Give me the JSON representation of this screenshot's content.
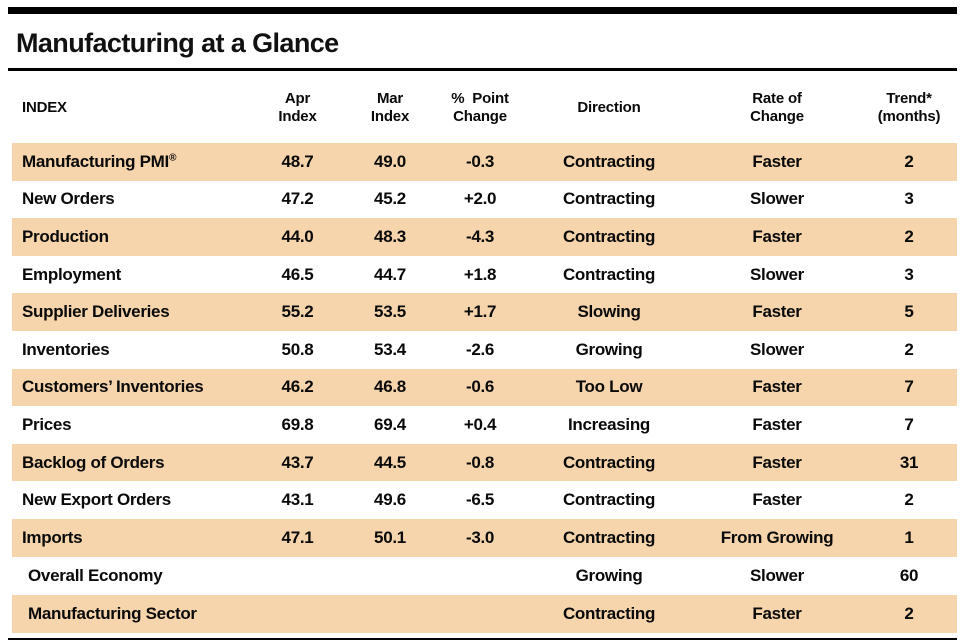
{
  "title": "Manufacturing at a Glance",
  "colors": {
    "row_highlight": "#F6D4AC",
    "rule": "#000000",
    "text": "#0a0a0a"
  },
  "table": {
    "header": {
      "index": "INDEX",
      "apr": [
        "Apr",
        "Index"
      ],
      "mar": [
        "Mar",
        "Index"
      ],
      "change": [
        "%  Point",
        "Change"
      ],
      "direction": "Direction",
      "rate": [
        "Rate of",
        "Change"
      ],
      "trend": [
        "Trend*",
        "(months)"
      ]
    },
    "rows": [
      {
        "name": "Manufacturing PMI",
        "suffix": "®",
        "apr": "48.7",
        "mar": "49.0",
        "change": "-0.3",
        "direction": "Contracting",
        "rate": "Faster",
        "trend": "2"
      },
      {
        "name": "New Orders",
        "apr": "47.2",
        "mar": "45.2",
        "change": "+2.0",
        "direction": "Contracting",
        "rate": "Slower",
        "trend": "3"
      },
      {
        "name": "Production",
        "apr": "44.0",
        "mar": "48.3",
        "change": "-4.3",
        "direction": "Contracting",
        "rate": "Faster",
        "trend": "2"
      },
      {
        "name": "Employment",
        "apr": "46.5",
        "mar": "44.7",
        "change": "+1.8",
        "direction": "Contracting",
        "rate": "Slower",
        "trend": "3"
      },
      {
        "name": "Supplier Deliveries",
        "apr": "55.2",
        "mar": "53.5",
        "change": "+1.7",
        "direction": "Slowing",
        "rate": "Faster",
        "trend": "5"
      },
      {
        "name": "Inventories",
        "apr": "50.8",
        "mar": "53.4",
        "change": "-2.6",
        "direction": "Growing",
        "rate": "Slower",
        "trend": "2"
      },
      {
        "name": "Customers’ Inventories",
        "apr": "46.2",
        "mar": "46.8",
        "change": "-0.6",
        "direction": "Too Low",
        "rate": "Faster",
        "trend": "7"
      },
      {
        "name": "Prices",
        "apr": "69.8",
        "mar": "69.4",
        "change": "+0.4",
        "direction": "Increasing",
        "rate": "Faster",
        "trend": "7"
      },
      {
        "name": "Backlog of Orders",
        "apr": "43.7",
        "mar": "44.5",
        "change": "-0.8",
        "direction": "Contracting",
        "rate": "Faster",
        "trend": "31"
      },
      {
        "name": "New Export Orders",
        "apr": "43.1",
        "mar": "49.6",
        "change": "-6.5",
        "direction": "Contracting",
        "rate": "Faster",
        "trend": "2"
      },
      {
        "name": "Imports",
        "apr": "47.1",
        "mar": "50.1",
        "change": "-3.0",
        "direction": "Contracting",
        "rate": "From Growing",
        "trend": "1"
      }
    ],
    "summary_rows": [
      {
        "name": "Overall Economy",
        "direction": "Growing",
        "rate": "Slower",
        "trend": "60"
      },
      {
        "name": "Manufacturing Sector",
        "direction": "Contracting",
        "rate": "Faster",
        "trend": "2"
      }
    ]
  }
}
